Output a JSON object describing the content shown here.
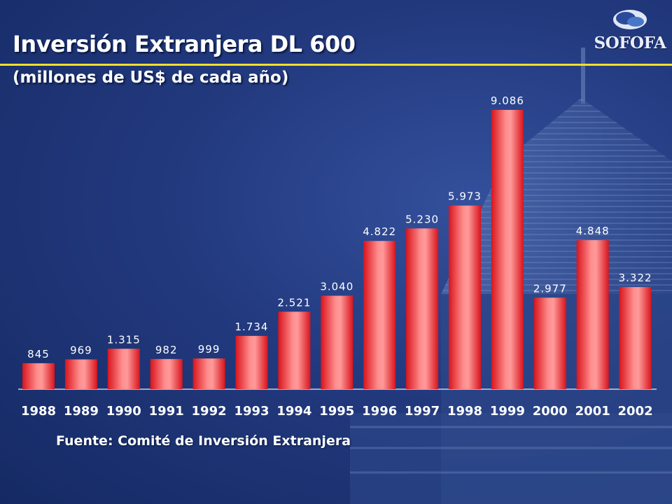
{
  "slide": {
    "title": "Inversión Extranjera DL 600",
    "subtitle": "(millones de US$ de cada año)",
    "source": "Fuente: Comité de Inversión Extranjera",
    "logo_text": "SOFOFA"
  },
  "colors": {
    "background": "#22397e",
    "accent_rule": "#f1df2c",
    "bar": "#e8232a",
    "bar_highlight": "#ff9a9a",
    "text": "#ffffff"
  },
  "chart_data": {
    "type": "bar",
    "title": "Inversión Extranjera DL 600",
    "subtitle": "(millones de US$ de cada año)",
    "xlabel": "",
    "ylabel": "",
    "categories": [
      "1988",
      "1989",
      "1990",
      "1991",
      "1992",
      "1993",
      "1994",
      "1995",
      "1996",
      "1997",
      "1998",
      "1999",
      "2000",
      "2001",
      "2002"
    ],
    "values": [
      845,
      969,
      1315,
      982,
      999,
      1734,
      2521,
      3040,
      4822,
      5230,
      5973,
      9086,
      2977,
      4848,
      3322
    ],
    "data_labels": [
      "845",
      "969",
      "1.315",
      "982",
      "999",
      "1.734",
      "2.521",
      "3.040",
      "4.822",
      "5.230",
      "5.973",
      "9.086",
      "2.977",
      "4.848",
      "3.322"
    ],
    "ylim": [
      0,
      9086
    ],
    "grid": false,
    "legend": "none"
  }
}
